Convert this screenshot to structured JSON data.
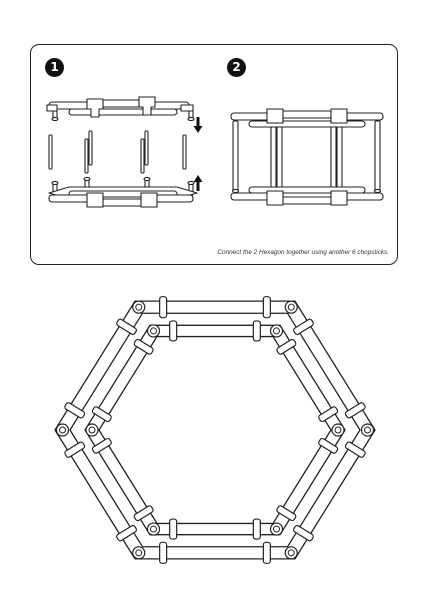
{
  "steps": [
    {
      "number": "1"
    },
    {
      "number": "2"
    }
  ],
  "caption": "Connect the 2 Hexagon together using another 6 chopsticks.",
  "icons": {
    "arrow_down": "arrow-down-icon",
    "arrow_up": "arrow-up-icon"
  },
  "colors": {
    "stroke": "#222222",
    "fill": "#ffffff",
    "badge": "#111111"
  }
}
